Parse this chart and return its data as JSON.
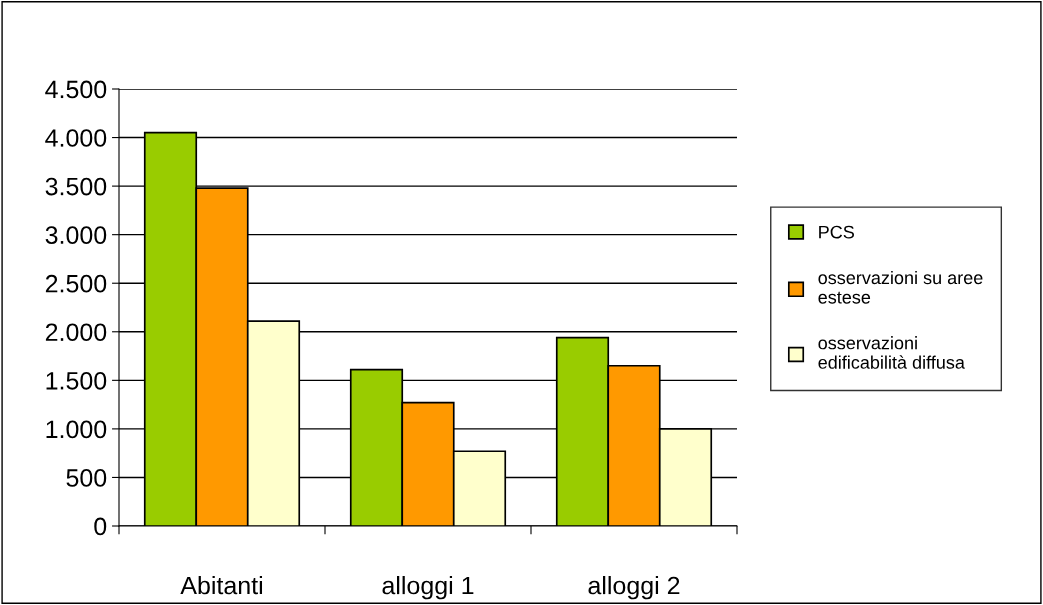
{
  "chart_data": {
    "type": "bar",
    "categories": [
      "Abitanti",
      "alloggi 1",
      "alloggi 2"
    ],
    "series": [
      {
        "name": "PCS",
        "color": "#99cc00",
        "values": [
          4050,
          1610,
          1940
        ]
      },
      {
        "name": "osservazioni su aree estese",
        "color": "#ff9900",
        "values": [
          3480,
          1270,
          1650
        ]
      },
      {
        "name": "osservazioni edificabilità diffusa",
        "color": "#ffffcc",
        "values": [
          2110,
          770,
          1000
        ]
      }
    ],
    "ylim": [
      0,
      4500
    ],
    "yticks": [
      0,
      500,
      {
        "value": 1000,
        "label": "1.000"
      },
      {
        "value": 1500,
        "label": "1.500"
      },
      {
        "value": 2000,
        "label": "2.000"
      },
      {
        "value": 2500,
        "label": "2.500"
      },
      {
        "value": 3000,
        "label": "3.000"
      },
      {
        "value": 3500,
        "label": "3.500"
      },
      {
        "value": 4000,
        "label": "4.000"
      },
      {
        "value": 4500,
        "label": "4.500"
      }
    ],
    "grid": "y",
    "legend": "right"
  }
}
